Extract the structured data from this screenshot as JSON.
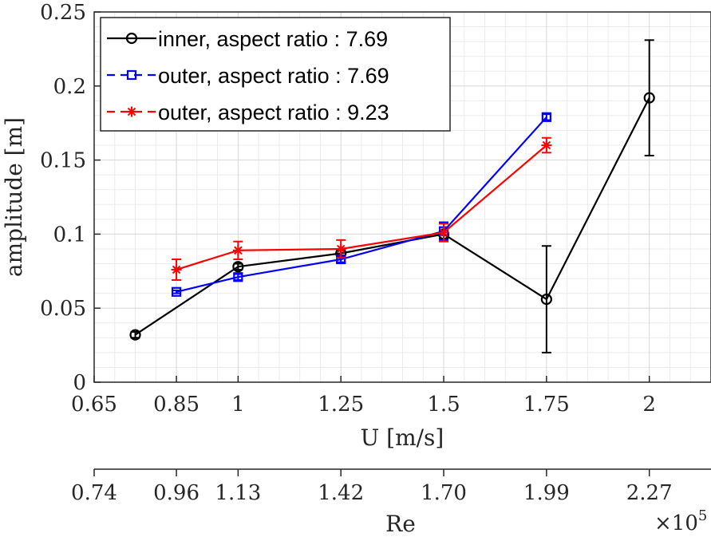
{
  "chart_data": {
    "type": "line",
    "xlabel": "U [m/s]",
    "ylabel": "amplitude [m]",
    "xlim": [
      0.65,
      2.15
    ],
    "ylim": [
      0,
      0.25
    ],
    "x_ticks": [
      0.65,
      0.85,
      1,
      1.25,
      1.5,
      1.75,
      2
    ],
    "x_tick_labels": [
      "0.65",
      "0.85",
      "1",
      "1.25",
      "1.5",
      "1.75",
      "2"
    ],
    "y_ticks": [
      0,
      0.05,
      0.1,
      0.15,
      0.2,
      0.25
    ],
    "y_tick_labels": [
      "0",
      "0.05",
      "0.1",
      "0.15",
      "0.2",
      "0.25"
    ],
    "grid": true,
    "minor_grid": true,
    "legend_position": "top-left",
    "secondary_axis": {
      "label": "Re",
      "ticks": [
        0.65,
        0.85,
        1,
        1.25,
        1.5,
        1.75,
        2
      ],
      "tick_labels": [
        "0.74",
        "0.96",
        "1.13",
        "1.42",
        "1.70",
        "1.99",
        "2.27"
      ],
      "multiplier_base": "×10",
      "multiplier_exp": "5"
    },
    "series": [
      {
        "name": "inner, aspect ratio : 7.69",
        "color": "#000000",
        "marker": "circle",
        "points": [
          {
            "x": 0.75,
            "y": 0.032,
            "err": 0.002
          },
          {
            "x": 1.0,
            "y": 0.078,
            "err": 0.002
          },
          {
            "x": 1.25,
            "y": 0.087,
            "err": 0.002
          },
          {
            "x": 1.5,
            "y": 0.1,
            "err": 0.003
          },
          {
            "x": 1.75,
            "y": 0.056,
            "err": 0.036
          },
          {
            "x": 2.0,
            "y": 0.192,
            "err": 0.039
          }
        ]
      },
      {
        "name": "outer, aspect ratio : 7.69",
        "color": "#0000ff",
        "marker": "square",
        "points": [
          {
            "x": 0.85,
            "y": 0.061,
            "err": 0.001
          },
          {
            "x": 1.0,
            "y": 0.071,
            "err": 0.002
          },
          {
            "x": 1.25,
            "y": 0.083,
            "err": 0.002
          },
          {
            "x": 1.5,
            "y": 0.102,
            "err": 0.006
          },
          {
            "x": 1.75,
            "y": 0.179,
            "err": 0.002
          }
        ]
      },
      {
        "name": "outer, aspect ratio : 9.23",
        "color": "#ff0000",
        "marker": "asterisk",
        "points": [
          {
            "x": 0.85,
            "y": 0.076,
            "err": 0.007
          },
          {
            "x": 1.0,
            "y": 0.089,
            "err": 0.006
          },
          {
            "x": 1.25,
            "y": 0.09,
            "err": 0.006
          },
          {
            "x": 1.5,
            "y": 0.101,
            "err": 0.006
          },
          {
            "x": 1.75,
            "y": 0.16,
            "err": 0.005
          }
        ]
      }
    ]
  }
}
